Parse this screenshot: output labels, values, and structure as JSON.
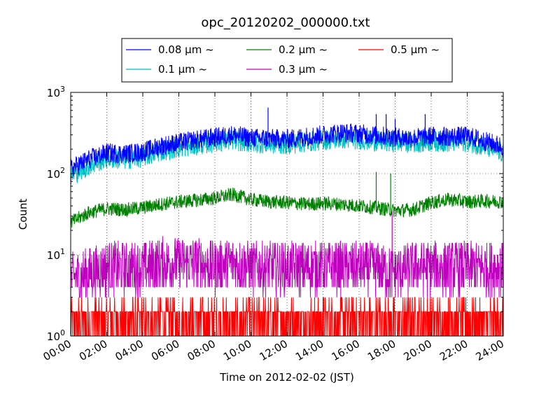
{
  "chart_data": {
    "type": "line",
    "title": "opc_20120202_000000.txt",
    "xlabel": "Time on 2012-02-02 (JST)",
    "ylabel": "Count",
    "xlim": [
      "00:00",
      "24:00"
    ],
    "ylim": [
      1,
      1000
    ],
    "yscale": "log",
    "grid": true,
    "legend_position": "top-center",
    "x_ticks": [
      "00:00",
      "02:00",
      "04:00",
      "06:00",
      "08:00",
      "10:00",
      "12:00",
      "14:00",
      "16:00",
      "18:00",
      "20:00",
      "22:00",
      "24:00"
    ],
    "y_ticks": [
      {
        "base": "10",
        "exp": "0",
        "value": 1
      },
      {
        "base": "10",
        "exp": "1",
        "value": 10
      },
      {
        "base": "10",
        "exp": "2",
        "value": 100
      },
      {
        "base": "10",
        "exp": "3",
        "value": 1000
      }
    ],
    "x": [
      "00:00",
      "01:00",
      "02:00",
      "03:00",
      "04:00",
      "05:00",
      "06:00",
      "07:00",
      "08:00",
      "09:00",
      "10:00",
      "11:00",
      "12:00",
      "13:00",
      "14:00",
      "15:00",
      "16:00",
      "17:00",
      "18:00",
      "19:00",
      "20:00",
      "21:00",
      "22:00",
      "23:00",
      "24:00"
    ],
    "series": [
      {
        "name": "0.08 μm ~",
        "color": "#0000ff",
        "values": [
          115,
          150,
          180,
          175,
          185,
          220,
          240,
          260,
          280,
          300,
          275,
          270,
          265,
          285,
          300,
          320,
          310,
          295,
          280,
          275,
          290,
          285,
          290,
          250,
          215
        ]
      },
      {
        "name": "0.1 μm ~",
        "color": "#00bfbf",
        "values": [
          95,
          125,
          155,
          150,
          160,
          190,
          210,
          225,
          245,
          260,
          240,
          235,
          230,
          245,
          260,
          270,
          265,
          250,
          245,
          240,
          250,
          245,
          250,
          215,
          180
        ]
      },
      {
        "name": "0.2 μm ~",
        "color": "#008000",
        "values": [
          25,
          33,
          37,
          36,
          38,
          42,
          45,
          47,
          50,
          55,
          48,
          45,
          44,
          42,
          43,
          42,
          40,
          38,
          35,
          36,
          44,
          48,
          45,
          46,
          45
        ]
      },
      {
        "name": "0.3 μm ~",
        "color": "#bf00bf",
        "values": [
          5,
          6,
          7,
          7,
          7,
          8,
          8,
          8,
          7,
          8,
          7,
          7,
          7,
          7,
          7,
          7,
          7,
          7,
          6,
          7,
          7,
          7,
          7,
          7,
          7
        ]
      },
      {
        "name": "0.5 μm ~",
        "color": "#ff0000",
        "values": [
          1.5,
          1.5,
          1.5,
          1.5,
          1.5,
          1.5,
          1.5,
          1.5,
          1.5,
          1.5,
          1.5,
          1.5,
          1.5,
          1.5,
          1.5,
          1.5,
          1.5,
          1.5,
          1.5,
          1.5,
          1.5,
          1.5,
          1.5,
          1.5,
          1.5
        ]
      }
    ],
    "spikes": [
      {
        "series": "0.08 μm ~",
        "x": "10:57",
        "y": 650
      },
      {
        "series": "0.08 μm ~",
        "x": "16:57",
        "y": 540
      },
      {
        "series": "0.08 μm ~",
        "x": "17:30",
        "y": 540
      },
      {
        "series": "0.08 μm ~",
        "x": "18:00",
        "y": 470
      },
      {
        "series": "0.08 μm ~",
        "x": "19:40",
        "y": 540
      },
      {
        "series": "0.2 μm ~",
        "x": "16:57",
        "y": 105
      },
      {
        "series": "0.2 μm ~",
        "x": "17:45",
        "y": 100
      },
      {
        "series": "0.3 μm ~",
        "x": "17:50",
        "y": 35
      }
    ]
  }
}
